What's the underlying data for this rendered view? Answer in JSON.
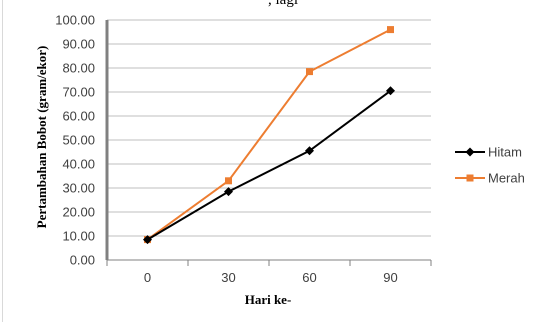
{
  "top_fragment": ", lagi",
  "chart_data": {
    "type": "line",
    "xlabel": "Hari ke-",
    "ylabel": "Pertambahan Bobot (gram/ekor)",
    "categories": [
      "0",
      "30",
      "60",
      "90"
    ],
    "ylim": [
      0,
      100
    ],
    "yticks": [
      "0.00",
      "10.00",
      "20.00",
      "30.00",
      "40.00",
      "50.00",
      "60.00",
      "70.00",
      "80.00",
      "90.00",
      "100.00"
    ],
    "grid": true,
    "legend_position": "right",
    "series": [
      {
        "name": "Hitam",
        "values": [
          8.5,
          28.5,
          45.5,
          70.5
        ],
        "color": "#000000",
        "marker": "diamond"
      },
      {
        "name": "Merah",
        "values": [
          8.5,
          33.0,
          78.5,
          96.0
        ],
        "color": "#ED7D31",
        "marker": "square"
      }
    ]
  }
}
